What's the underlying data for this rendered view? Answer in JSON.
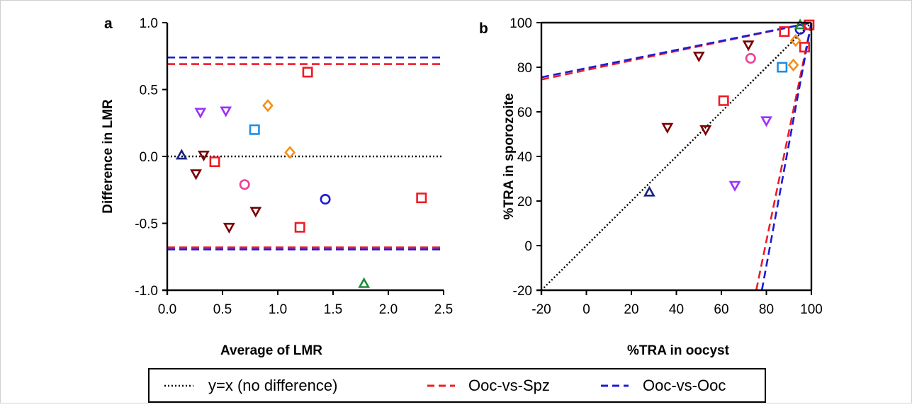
{
  "colors": {
    "dark_red": "#7a0000",
    "red": "#ee1c25",
    "blue": "#1b1bd6",
    "navy": "#1a237e",
    "purple": "#9b30ff",
    "orange": "#f39019",
    "light_blue": "#1f8ee6",
    "pink": "#ee3f9a",
    "green": "#1f8a3a",
    "frame": "#cfcfcf"
  },
  "chart_data": [
    {
      "type": "scatter",
      "panel_label": "a",
      "xlabel": "Average of LMR",
      "ylabel": "Difference in LMR",
      "xlim": [
        0.0,
        2.5
      ],
      "ylim": [
        -1.0,
        1.0
      ],
      "x_ticks": [
        "0.0",
        "0.5",
        "1.0",
        "1.5",
        "2.0",
        "2.5"
      ],
      "y_ticks": [
        "1.0",
        "0.5",
        "0.0",
        "-0.5",
        "-1.0"
      ],
      "reference_lines": [
        {
          "series": "y=x (no difference)",
          "y": 0.0,
          "style": "dotted",
          "color": "#000000"
        },
        {
          "series": "Ooc-vs-Spz",
          "y": 0.69,
          "style": "dashed",
          "color": "#ee1c25"
        },
        {
          "series": "Ooc-vs-Spz",
          "y": -0.68,
          "style": "dashed",
          "color": "#ee1c25"
        },
        {
          "series": "Ooc-vs-Ooc",
          "y": 0.74,
          "style": "dashed",
          "color": "#1b1bd6"
        },
        {
          "series": "Ooc-vs-Ooc",
          "y": -0.695,
          "style": "dashed",
          "color": "#1b1bd6"
        }
      ],
      "points": [
        {
          "x": 0.13,
          "y": 0.01,
          "shape": "triangle-up",
          "color": "#1a237e"
        },
        {
          "x": 0.26,
          "y": -0.13,
          "shape": "triangle-down",
          "color": "#7a0000"
        },
        {
          "x": 0.3,
          "y": 0.33,
          "shape": "triangle-down",
          "color": "#9b30ff"
        },
        {
          "x": 0.33,
          "y": 0.01,
          "shape": "triangle-down",
          "color": "#7a0000"
        },
        {
          "x": 0.43,
          "y": -0.04,
          "shape": "square",
          "color": "#ee1c25"
        },
        {
          "x": 0.53,
          "y": 0.34,
          "shape": "triangle-down",
          "color": "#9b30ff"
        },
        {
          "x": 0.56,
          "y": -0.53,
          "shape": "triangle-down",
          "color": "#7a0000"
        },
        {
          "x": 0.7,
          "y": -0.21,
          "shape": "circle",
          "color": "#ee3f9a"
        },
        {
          "x": 0.79,
          "y": 0.2,
          "shape": "square",
          "color": "#1f8ee6"
        },
        {
          "x": 0.8,
          "y": -0.41,
          "shape": "triangle-down",
          "color": "#7a0000"
        },
        {
          "x": 0.91,
          "y": 0.38,
          "shape": "diamond",
          "color": "#f39019"
        },
        {
          "x": 1.11,
          "y": 0.03,
          "shape": "diamond",
          "color": "#f39019"
        },
        {
          "x": 1.2,
          "y": -0.53,
          "shape": "square",
          "color": "#ee1c25"
        },
        {
          "x": 1.27,
          "y": 0.63,
          "shape": "square",
          "color": "#ee1c25"
        },
        {
          "x": 1.43,
          "y": -0.32,
          "shape": "circle",
          "color": "#1b1bd6"
        },
        {
          "x": 1.78,
          "y": -0.95,
          "shape": "triangle-up",
          "color": "#1f8a3a"
        },
        {
          "x": 2.3,
          "y": -0.31,
          "shape": "square",
          "color": "#ee1c25"
        }
      ]
    },
    {
      "type": "scatter",
      "panel_label": "b",
      "xlabel": "%TRA in oocyst",
      "ylabel": "%TRA in sporozoite",
      "xlim": [
        -20,
        100
      ],
      "ylim": [
        -20,
        100
      ],
      "x_ticks": [
        "-20",
        "0",
        "20",
        "40",
        "60",
        "80",
        "100"
      ],
      "y_ticks": [
        "100",
        "80",
        "60",
        "40",
        "20",
        "0",
        "-20"
      ],
      "reference_lines": [
        {
          "series": "y=x (no difference)",
          "points": [
            [
              -20,
              -20
            ],
            [
              100,
              100
            ]
          ],
          "style": "dotted",
          "color": "#000000"
        },
        {
          "series": "Ooc-vs-Spz",
          "points": [
            [
              -20,
              74.5
            ],
            [
              100,
              100
            ]
          ],
          "style": "dashed",
          "color": "#ee1c25"
        },
        {
          "series": "Ooc-vs-Spz",
          "points": [
            [
              75.5,
              -20
            ],
            [
              100,
              100
            ]
          ],
          "style": "dashed",
          "color": "#ee1c25"
        },
        {
          "series": "Ooc-vs-Ooc",
          "points": [
            [
              -20,
              75.5
            ],
            [
              100,
              100
            ]
          ],
          "style": "dashed",
          "color": "#1b1bd6"
        },
        {
          "series": "Ooc-vs-Ooc",
          "points": [
            [
              78,
              -20
            ],
            [
              100,
              100
            ]
          ],
          "style": "dashed",
          "color": "#1b1bd6"
        }
      ],
      "points": [
        {
          "x": 28,
          "y": 24,
          "shape": "triangle-up",
          "color": "#1a237e"
        },
        {
          "x": 36,
          "y": 53,
          "shape": "triangle-down",
          "color": "#7a0000"
        },
        {
          "x": 50,
          "y": 85,
          "shape": "triangle-down",
          "color": "#7a0000"
        },
        {
          "x": 53,
          "y": 52,
          "shape": "triangle-down",
          "color": "#7a0000"
        },
        {
          "x": 61,
          "y": 65,
          "shape": "square",
          "color": "#ee1c25"
        },
        {
          "x": 66,
          "y": 27,
          "shape": "triangle-down",
          "color": "#9b30ff"
        },
        {
          "x": 72,
          "y": 90,
          "shape": "triangle-down",
          "color": "#7a0000"
        },
        {
          "x": 73,
          "y": 84,
          "shape": "circle",
          "color": "#ee3f9a"
        },
        {
          "x": 80,
          "y": 56,
          "shape": "triangle-down",
          "color": "#9b30ff"
        },
        {
          "x": 87,
          "y": 80,
          "shape": "square",
          "color": "#1f8ee6"
        },
        {
          "x": 88,
          "y": 96,
          "shape": "square",
          "color": "#ee1c25"
        },
        {
          "x": 92,
          "y": 81,
          "shape": "diamond",
          "color": "#f39019"
        },
        {
          "x": 93,
          "y": 92,
          "shape": "diamond",
          "color": "#f39019"
        },
        {
          "x": 95,
          "y": 97,
          "shape": "circle",
          "color": "#1b1bd6"
        },
        {
          "x": 95,
          "y": 99,
          "shape": "triangle-up",
          "color": "#1f8a3a"
        },
        {
          "x": 97,
          "y": 89,
          "shape": "square",
          "color": "#ee1c25"
        },
        {
          "x": 99,
          "y": 99,
          "shape": "square",
          "color": "#ee1c25"
        }
      ]
    }
  ],
  "legend": {
    "placement": "bottom-center",
    "entries": [
      {
        "label": "y=x (no difference)",
        "style": "dotted",
        "color": "#000000"
      },
      {
        "label": "Ooc-vs-Spz",
        "style": "dashed",
        "color": "#ee1c25"
      },
      {
        "label": "Ooc-vs-Ooc",
        "style": "dashed",
        "color": "#1b1bd6"
      }
    ]
  }
}
